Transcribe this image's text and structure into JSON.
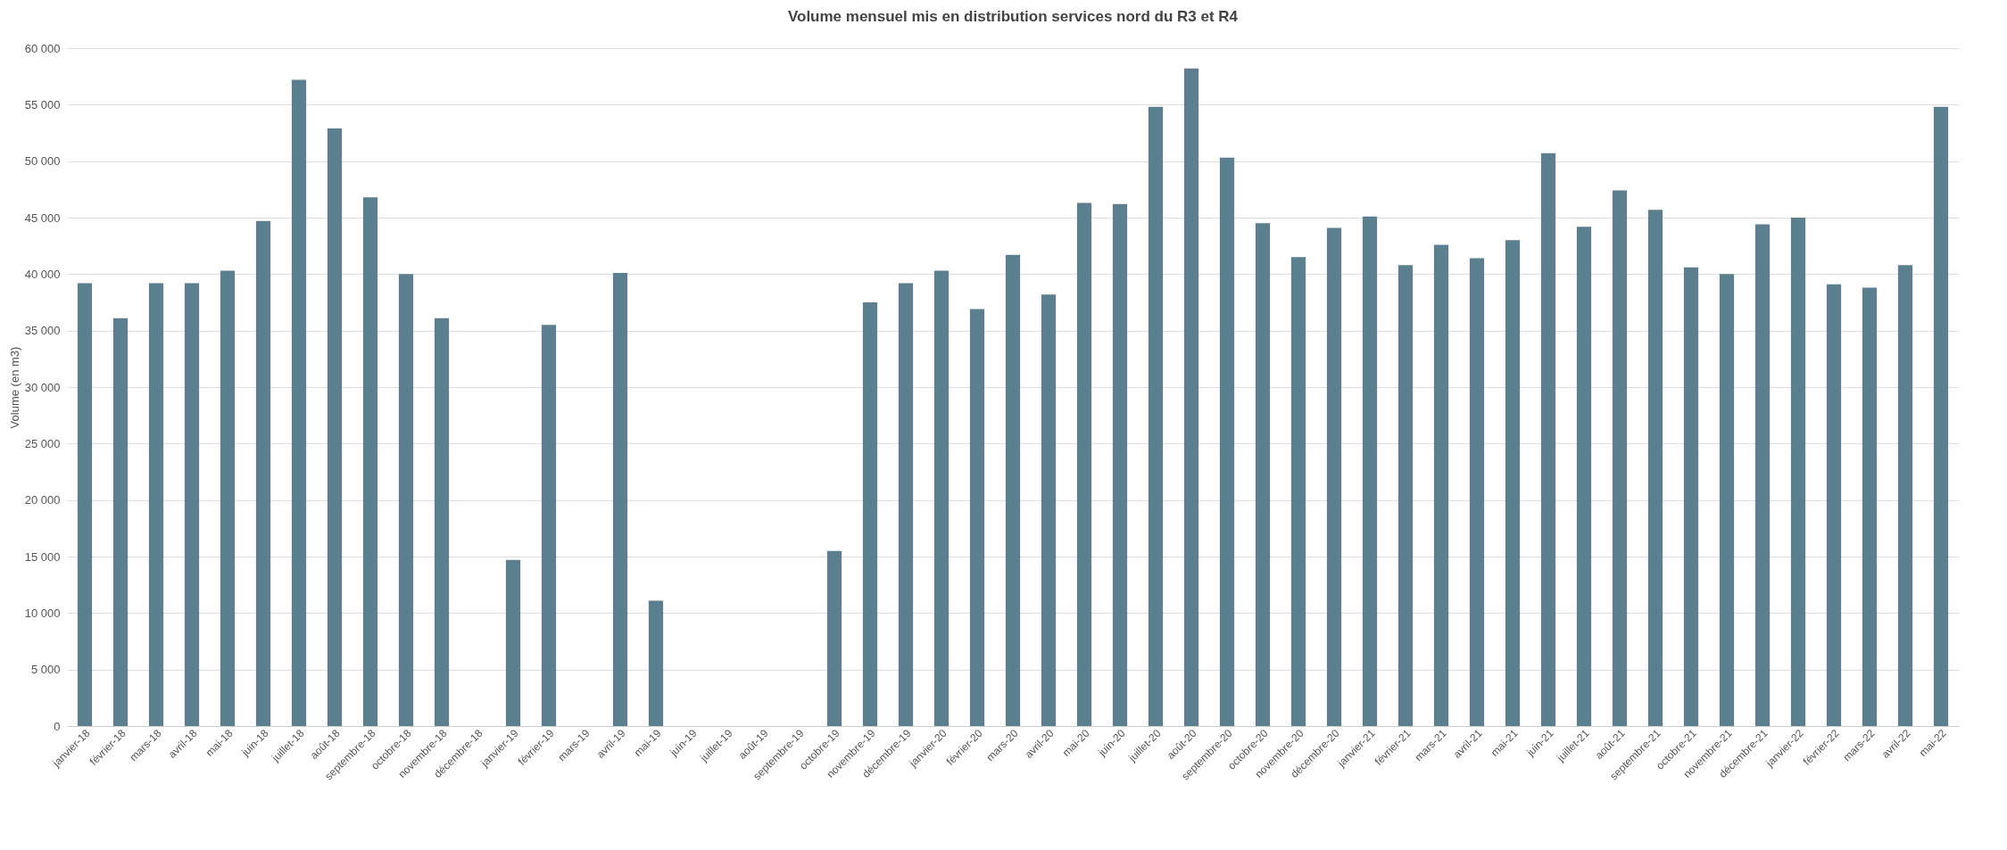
{
  "chart_data": {
    "type": "bar",
    "title": "Volume mensuel mis en distribution services nord du R3 et R4",
    "ylabel": "Volume (en m3)",
    "categories": [
      "janvier-18",
      "février-18",
      "mars-18",
      "avril-18",
      "mai-18",
      "juin-18",
      "juillet-18",
      "août-18",
      "septembre-18",
      "octobre-18",
      "novembre-18",
      "décembre-18",
      "janvier-19",
      "février-19",
      "mars-19",
      "avril-19",
      "mai-19",
      "juin-19",
      "juillet-19",
      "août-19",
      "septembre-19",
      "octobre-19",
      "novembre-19",
      "décembre-19",
      "janvier-20",
      "février-20",
      "mars-20",
      "avril-20",
      "mai-20",
      "juin-20",
      "juillet-20",
      "août-20",
      "septembre-20",
      "octobre-20",
      "novembre-20",
      "décembre-20",
      "janvier-21",
      "février-21",
      "mars-21",
      "avril-21",
      "mai-21",
      "juin-21",
      "juillet-21",
      "août-21",
      "septembre-21",
      "octobre-21",
      "novembre-21",
      "décembre-21",
      "janvier-22",
      "février-22",
      "mars-22",
      "avril-22",
      "mai-22"
    ],
    "values": [
      39200,
      36100,
      39200,
      39200,
      40300,
      44700,
      57200,
      52900,
      46800,
      40000,
      36100,
      0,
      14700,
      35500,
      0,
      40100,
      11100,
      0,
      0,
      0,
      0,
      15500,
      37500,
      39200,
      40300,
      36900,
      41700,
      38200,
      46300,
      46200,
      54800,
      58200,
      50300,
      44500,
      41500,
      44100,
      45100,
      40800,
      42600,
      41400,
      43000,
      50700,
      44200,
      47400,
      45700,
      40600,
      40000,
      44400,
      45000,
      39100,
      38800,
      40800,
      54800
    ],
    "color": "#5b7f8f",
    "ylim": [
      0,
      60000
    ],
    "yticks": [
      {
        "value": 0,
        "label": "0"
      },
      {
        "value": 5000,
        "label": "5 000"
      },
      {
        "value": 10000,
        "label": "10 000"
      },
      {
        "value": 15000,
        "label": "15 000"
      },
      {
        "value": 20000,
        "label": "20 000"
      },
      {
        "value": 25000,
        "label": "25 000"
      },
      {
        "value": 30000,
        "label": "30 000"
      },
      {
        "value": 35000,
        "label": "35 000"
      },
      {
        "value": 40000,
        "label": "40 000"
      },
      {
        "value": 45000,
        "label": "45 000"
      },
      {
        "value": 50000,
        "label": "50 000"
      },
      {
        "value": 55000,
        "label": "55 000"
      },
      {
        "value": 60000,
        "label": "60 000"
      }
    ],
    "grid": "y"
  }
}
